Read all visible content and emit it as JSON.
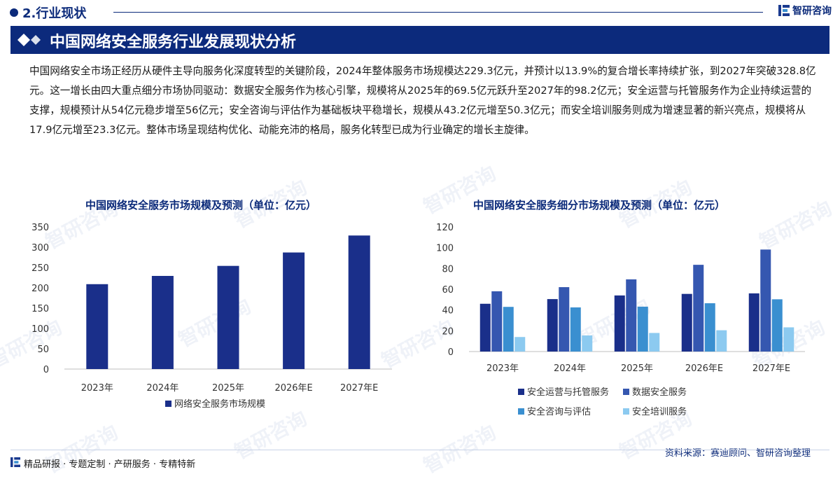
{
  "header": {
    "section_title": "2.行业现状",
    "logo_text": "智研咨询",
    "banner_title": "中国网络安全服务行业发展现状分析"
  },
  "body_text": "中国网络安全市场正经历从硬件主导向服务化深度转型的关键阶段，2024年整体服务市场规模达229.3亿元，并预计以13.9%的复合增长率持续扩张，到2027年突破328.8亿元。这一增长由四大重点细分市场协同驱动：数据安全服务作为核心引擎，规模将从2025年的69.5亿元跃升至2027年的98.2亿元；安全运营与托管服务作为企业持续运营的支撑，规模预计从54亿元稳步增至56亿元；安全咨询与评估作为基础板块平稳增长，规模从43.2亿元增至50.3亿元；而安全培训服务则成为增速显著的新兴亮点，规模将从17.9亿元增至23.3亿元。整体市场呈现结构优化、动能充沛的格局，服务化转型已成为行业确定的增长主旋律。",
  "watermark_text": "智研咨询",
  "colors": {
    "primary": "#0c2a7c",
    "series": [
      "#1a2f8a",
      "#3557b0",
      "#3a8fd0",
      "#8ccaf0"
    ]
  },
  "chart_data": [
    {
      "type": "bar",
      "title": "中国网络安全服务市场规模及预测（单位：亿元）",
      "categories": [
        "2023年",
        "2024年",
        "2025年",
        "2026年E",
        "2027年E"
      ],
      "series": [
        {
          "name": "网络安全服务市场规模",
          "values": [
            209,
            229.3,
            254,
            287,
            328.8
          ]
        }
      ],
      "yticks": [
        "0",
        "50",
        "100",
        "150",
        "200",
        "250",
        "300",
        "350"
      ],
      "ylim": [
        0,
        350
      ],
      "grid": false,
      "legend": "bottom"
    },
    {
      "type": "bar",
      "title": "中国网络安全服务细分市场规模及预测（单位：亿元）",
      "categories": [
        "2023年",
        "2024年",
        "2025年",
        "2026年E",
        "2027年E"
      ],
      "series": [
        {
          "name": "安全运营与托管服务",
          "values": [
            46,
            50.5,
            54,
            55.5,
            56
          ]
        },
        {
          "name": "数据安全服务",
          "values": [
            58,
            62,
            69.5,
            83.5,
            98.2
          ]
        },
        {
          "name": "安全咨询与评估",
          "values": [
            43,
            42.5,
            43.2,
            46.5,
            50.3
          ]
        },
        {
          "name": "安全培训服务",
          "values": [
            14,
            15.5,
            17.9,
            20.5,
            23.3
          ]
        }
      ],
      "yticks": [
        "0",
        "20",
        "40",
        "60",
        "80",
        "100",
        "120"
      ],
      "ylim": [
        0,
        120
      ],
      "grid": false,
      "legend": "bottom"
    }
  ],
  "footer": {
    "services": "精品研报 · 专题定制 · 产研服务 · 专精特新",
    "source": "资料来源：赛迪顾问、智研咨询整理"
  }
}
